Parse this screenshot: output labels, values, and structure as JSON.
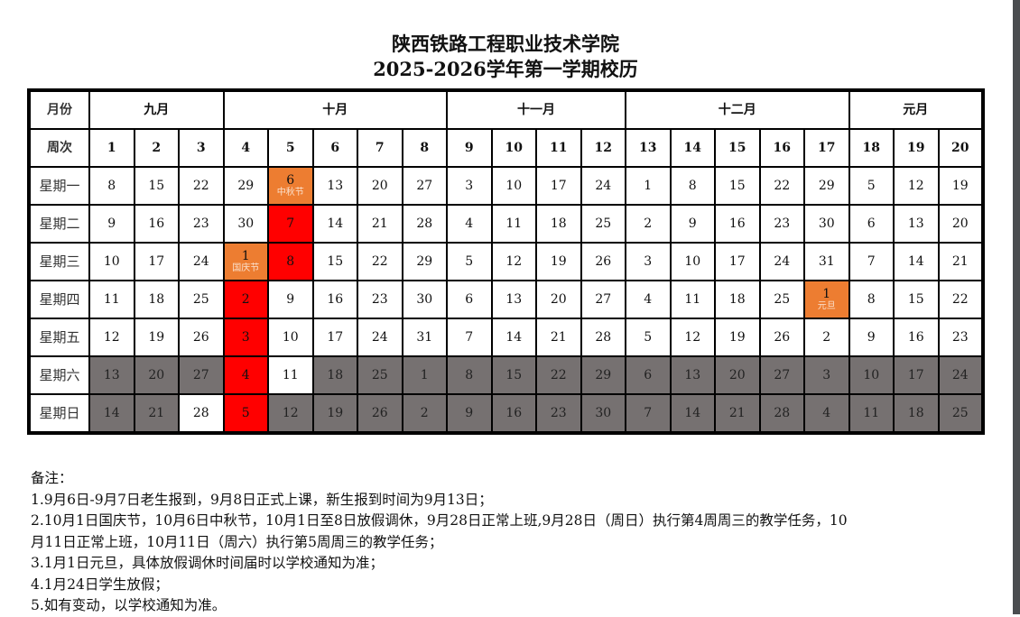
{
  "title": "陕西铁路工程职业技术学院",
  "subtitle": "2025-2026学年第一学期校历",
  "labels": {
    "month": "月份",
    "week": "周次"
  },
  "months": [
    {
      "name": "九月",
      "span": 3
    },
    {
      "name": "十月",
      "span": 5
    },
    {
      "name": "十一月",
      "span": 4
    },
    {
      "name": "十二月",
      "span": 5
    },
    {
      "name": "元月",
      "span": 3
    }
  ],
  "weekdays": [
    "星期一",
    "星期二",
    "星期三",
    "星期四",
    "星期五",
    "星期六",
    "星期日"
  ],
  "colors": {
    "holiday": "#ff0000",
    "festival": "#ed7d31",
    "weekend": "#767171",
    "workday": "#ffffff"
  },
  "weeks": [
    {
      "no": "1",
      "days": [
        {
          "d": "8"
        },
        {
          "d": "9"
        },
        {
          "d": "10"
        },
        {
          "d": "11"
        },
        {
          "d": "12"
        },
        {
          "d": "13",
          "s": "weekend"
        },
        {
          "d": "14",
          "s": "weekend"
        }
      ]
    },
    {
      "no": "2",
      "days": [
        {
          "d": "15"
        },
        {
          "d": "16"
        },
        {
          "d": "17"
        },
        {
          "d": "18"
        },
        {
          "d": "19"
        },
        {
          "d": "20",
          "s": "weekend"
        },
        {
          "d": "21",
          "s": "weekend"
        }
      ]
    },
    {
      "no": "3",
      "days": [
        {
          "d": "22"
        },
        {
          "d": "23"
        },
        {
          "d": "24"
        },
        {
          "d": "25"
        },
        {
          "d": "26"
        },
        {
          "d": "27",
          "s": "weekend"
        },
        {
          "d": "28"
        }
      ]
    },
    {
      "no": "4",
      "days": [
        {
          "d": "29"
        },
        {
          "d": "30"
        },
        {
          "d": "1",
          "s": "festival",
          "note": "国庆节"
        },
        {
          "d": "2",
          "s": "holiday"
        },
        {
          "d": "3",
          "s": "holiday"
        },
        {
          "d": "4",
          "s": "holiday"
        },
        {
          "d": "5",
          "s": "holiday"
        }
      ]
    },
    {
      "no": "5",
      "days": [
        {
          "d": "6",
          "s": "festival",
          "note": "中秋节"
        },
        {
          "d": "7",
          "s": "holiday"
        },
        {
          "d": "8",
          "s": "holiday"
        },
        {
          "d": "9"
        },
        {
          "d": "10"
        },
        {
          "d": "11"
        },
        {
          "d": "12",
          "s": "weekend"
        }
      ]
    },
    {
      "no": "6",
      "days": [
        {
          "d": "13"
        },
        {
          "d": "14"
        },
        {
          "d": "15"
        },
        {
          "d": "16"
        },
        {
          "d": "17"
        },
        {
          "d": "18",
          "s": "weekend"
        },
        {
          "d": "19",
          "s": "weekend"
        }
      ]
    },
    {
      "no": "7",
      "days": [
        {
          "d": "20"
        },
        {
          "d": "21"
        },
        {
          "d": "22"
        },
        {
          "d": "23"
        },
        {
          "d": "24"
        },
        {
          "d": "25",
          "s": "weekend"
        },
        {
          "d": "26",
          "s": "weekend"
        }
      ]
    },
    {
      "no": "8",
      "days": [
        {
          "d": "27"
        },
        {
          "d": "28"
        },
        {
          "d": "29"
        },
        {
          "d": "30"
        },
        {
          "d": "31"
        },
        {
          "d": "1",
          "s": "weekend"
        },
        {
          "d": "2",
          "s": "weekend"
        }
      ]
    },
    {
      "no": "9",
      "days": [
        {
          "d": "3"
        },
        {
          "d": "4"
        },
        {
          "d": "5"
        },
        {
          "d": "6"
        },
        {
          "d": "7"
        },
        {
          "d": "8",
          "s": "weekend"
        },
        {
          "d": "9",
          "s": "weekend"
        }
      ]
    },
    {
      "no": "10",
      "days": [
        {
          "d": "10"
        },
        {
          "d": "11"
        },
        {
          "d": "12"
        },
        {
          "d": "13"
        },
        {
          "d": "14"
        },
        {
          "d": "15",
          "s": "weekend"
        },
        {
          "d": "16",
          "s": "weekend"
        }
      ]
    },
    {
      "no": "11",
      "days": [
        {
          "d": "17"
        },
        {
          "d": "18"
        },
        {
          "d": "19"
        },
        {
          "d": "20"
        },
        {
          "d": "21"
        },
        {
          "d": "22",
          "s": "weekend"
        },
        {
          "d": "23",
          "s": "weekend"
        }
      ]
    },
    {
      "no": "12",
      "days": [
        {
          "d": "24"
        },
        {
          "d": "25"
        },
        {
          "d": "26"
        },
        {
          "d": "27"
        },
        {
          "d": "28"
        },
        {
          "d": "29",
          "s": "weekend"
        },
        {
          "d": "30",
          "s": "weekend"
        }
      ]
    },
    {
      "no": "13",
      "days": [
        {
          "d": "1"
        },
        {
          "d": "2"
        },
        {
          "d": "3"
        },
        {
          "d": "4"
        },
        {
          "d": "5"
        },
        {
          "d": "6",
          "s": "weekend"
        },
        {
          "d": "7",
          "s": "weekend"
        }
      ]
    },
    {
      "no": "14",
      "days": [
        {
          "d": "8"
        },
        {
          "d": "9"
        },
        {
          "d": "10"
        },
        {
          "d": "11"
        },
        {
          "d": "12"
        },
        {
          "d": "13",
          "s": "weekend"
        },
        {
          "d": "14",
          "s": "weekend"
        }
      ]
    },
    {
      "no": "15",
      "days": [
        {
          "d": "15"
        },
        {
          "d": "16"
        },
        {
          "d": "17"
        },
        {
          "d": "18"
        },
        {
          "d": "19"
        },
        {
          "d": "20",
          "s": "weekend"
        },
        {
          "d": "21",
          "s": "weekend"
        }
      ]
    },
    {
      "no": "16",
      "days": [
        {
          "d": "22"
        },
        {
          "d": "23"
        },
        {
          "d": "24"
        },
        {
          "d": "25"
        },
        {
          "d": "26"
        },
        {
          "d": "27",
          "s": "weekend"
        },
        {
          "d": "28",
          "s": "weekend"
        }
      ]
    },
    {
      "no": "17",
      "days": [
        {
          "d": "29"
        },
        {
          "d": "30"
        },
        {
          "d": "31"
        },
        {
          "d": "1",
          "s": "festival",
          "note": "元旦"
        },
        {
          "d": "2"
        },
        {
          "d": "3",
          "s": "weekend"
        },
        {
          "d": "4",
          "s": "weekend"
        }
      ]
    },
    {
      "no": "18",
      "days": [
        {
          "d": "5"
        },
        {
          "d": "6"
        },
        {
          "d": "7"
        },
        {
          "d": "8"
        },
        {
          "d": "9"
        },
        {
          "d": "10",
          "s": "weekend"
        },
        {
          "d": "11",
          "s": "weekend"
        }
      ]
    },
    {
      "no": "19",
      "days": [
        {
          "d": "12"
        },
        {
          "d": "13"
        },
        {
          "d": "14"
        },
        {
          "d": "15"
        },
        {
          "d": "16"
        },
        {
          "d": "17",
          "s": "weekend"
        },
        {
          "d": "18",
          "s": "weekend"
        }
      ]
    },
    {
      "no": "20",
      "days": [
        {
          "d": "19"
        },
        {
          "d": "20"
        },
        {
          "d": "21"
        },
        {
          "d": "22"
        },
        {
          "d": "23"
        },
        {
          "d": "24",
          "s": "weekend"
        },
        {
          "d": "25",
          "s": "weekend"
        }
      ]
    }
  ],
  "notes": {
    "heading": "备注：",
    "lines": [
      "1.9月6日-9月7日老生报到，9月8日正式上课，新生报到时间为9月13日；",
      "2.10月1日国庆节，10月6日中秋节，10月1日至8日放假调休，9月28日正常上班,9月28日（周日）执行第4周周三的教学任务，10",
      "月11日正常上班，10月11日（周六）执行第5周周三的教学任务；",
      "3.1月1日元旦，具体放假调休时间届时以学校通知为准；",
      "4.1月24日学生放假；",
      "5.如有变动，以学校通知为准。"
    ]
  }
}
